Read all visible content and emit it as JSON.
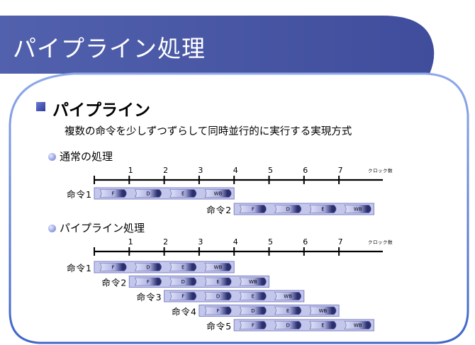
{
  "slide": {
    "title": "パイプライン処理",
    "heading": "パイプライン",
    "description": "複数の命令を少しずつずらして同時並行的に実行する実現方式"
  },
  "colors": {
    "title_band": "#4b5aa6",
    "panel_border": "#5b7fd6",
    "bar_fill": "#c4c7ec",
    "stage_dark": "#2b2f6e",
    "stage_light": "#dfe1f6"
  },
  "timeline": {
    "ticks": [
      "1",
      "2",
      "3",
      "4",
      "5",
      "6",
      "7"
    ],
    "unit_label": "クロック数"
  },
  "sections": [
    {
      "label": "通常の処理",
      "instructions": [
        {
          "label": "命令1",
          "start": 0,
          "stages": [
            "F",
            "D",
            "E",
            "WB"
          ]
        },
        {
          "label": "命令2",
          "start": 4,
          "stages": [
            "F",
            "D",
            "E",
            "WB"
          ]
        }
      ]
    },
    {
      "label": "パイプライン処理",
      "instructions": [
        {
          "label": "命令1",
          "start": 0,
          "stages": [
            "F",
            "D",
            "E",
            "WB"
          ]
        },
        {
          "label": "命令2",
          "start": 1,
          "stages": [
            "F",
            "D",
            "E",
            "WB"
          ]
        },
        {
          "label": "命令3",
          "start": 2,
          "stages": [
            "F",
            "D",
            "E",
            "WB"
          ]
        },
        {
          "label": "命令4",
          "start": 3,
          "stages": [
            "F",
            "D",
            "E",
            "WB"
          ]
        },
        {
          "label": "命令5",
          "start": 4,
          "stages": [
            "F",
            "D",
            "E",
            "WB"
          ]
        }
      ]
    }
  ]
}
